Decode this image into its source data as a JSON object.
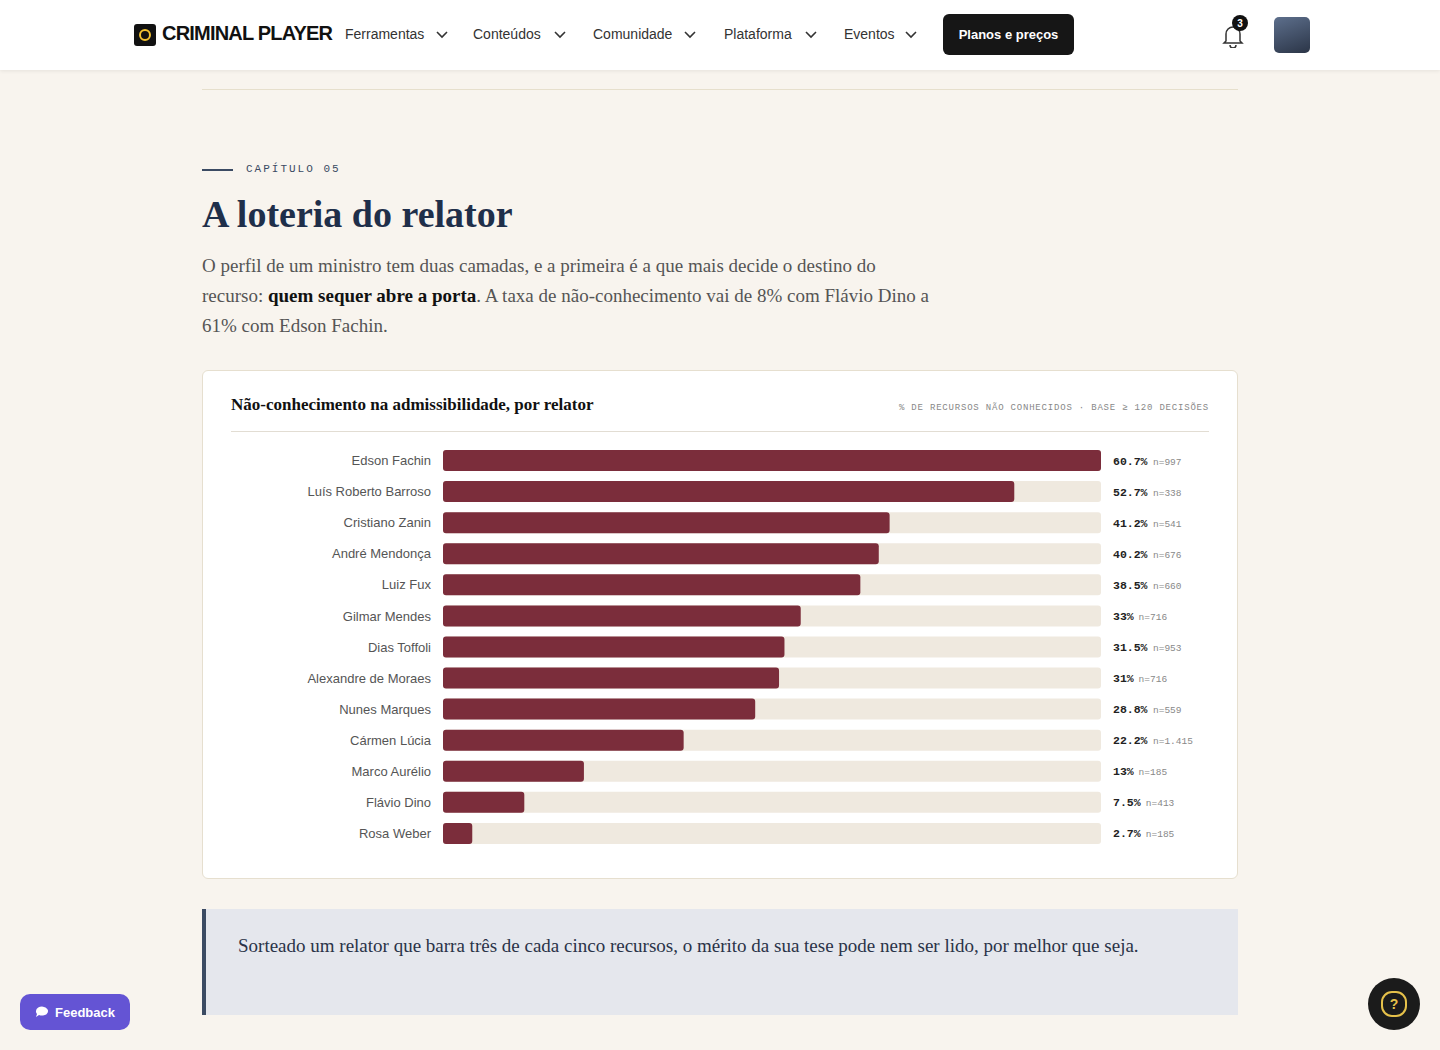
{
  "header": {
    "logo": "CRIMINAL PLAYER",
    "nav": [
      "Ferramentas",
      "Conteúdos",
      "Comunidade",
      "Plataforma",
      "Eventos"
    ],
    "button": "Planos e preços",
    "notifications": 3
  },
  "chapter": {
    "label": "CAPÍTULO 05",
    "title": "A loteria do relator",
    "intro": [
      {
        "text": "O perfil de um ministro tem duas camadas, e a primeira é a que mais decide o destino do recurso: ",
        "bold": false
      },
      {
        "text": "quem sequer abre a porta",
        "bold": true
      },
      {
        "text": ". A taxa de não-conhecimento vai de 8% com Flávio Dino a 61% com Edson Fachin.",
        "bold": false
      }
    ]
  },
  "chart_data": {
    "type": "bar",
    "orientation": "horizontal",
    "title": "Não-conhecimento na admissibilidade, por relator",
    "subtitle": "% DE RECURSOS NÃO CONHECIDOS · BASE ≥ 120 DECISÕES",
    "categories": [
      "Edson Fachin",
      "Luís Roberto Barroso",
      "Cristiano Zanin",
      "André Mendonça",
      "Luiz Fux",
      "Gilmar Mendes",
      "Dias Toffoli",
      "Alexandre de Moraes",
      "Nunes Marques",
      "Cármen Lúcia",
      "Marco Aurélio",
      "Flávio Dino",
      "Rosa Weber"
    ],
    "values": [
      60.7,
      52.7,
      41.2,
      40.2,
      38.5,
      33,
      31.5,
      31,
      28.8,
      22.2,
      13,
      7.5,
      2.7
    ],
    "value_labels": [
      "60.7%",
      "52.7%",
      "41.2%",
      "40.2%",
      "38.5%",
      "33%",
      "31.5%",
      "31%",
      "28.8%",
      "22.2%",
      "13%",
      "7.5%",
      "2.7%"
    ],
    "n": [
      997,
      338,
      541,
      676,
      660,
      716,
      953,
      716,
      559,
      1415,
      185,
      413,
      185
    ],
    "n_labels": [
      "n=997",
      "n=338",
      "n=541",
      "n=676",
      "n=660",
      "n=716",
      "n=953",
      "n=716",
      "n=559",
      "n=1.415",
      "n=185",
      "n=413",
      "n=185"
    ],
    "color": "#7b2d3b",
    "xlim": [
      0,
      60.7
    ],
    "xticks": [],
    "grid": false,
    "data_labels": true,
    "tick_labels": "y"
  },
  "callout": "Sorteado um relator que barra três de cada cinco recursos, o mérito da sua tese pode nem ser lido, por melhor que seja.",
  "widgets": {
    "feedback": "Feedback",
    "help": "?"
  }
}
